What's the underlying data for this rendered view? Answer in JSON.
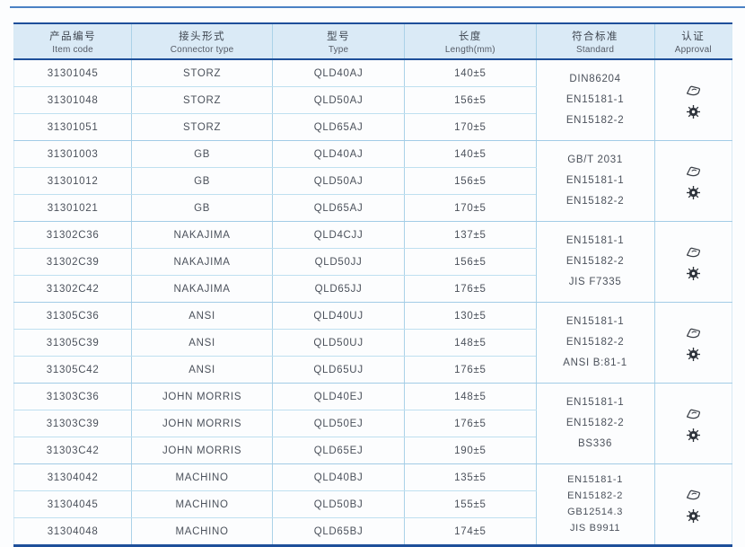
{
  "colors": {
    "accent_navy": "#1e4f9a",
    "header_bg": "#daeaf6",
    "grid_blue": "#abd2e8",
    "text": "#4b515b",
    "top_rule_blue": "#4a81c4"
  },
  "table": {
    "columns": [
      {
        "zh": "产品编号",
        "en": "Item code"
      },
      {
        "zh": "接头形式",
        "en": "Connector type"
      },
      {
        "zh": "型号",
        "en": "Type"
      },
      {
        "zh": "长度",
        "en": "Length(mm)"
      },
      {
        "zh": "符合标准",
        "en": "Standard"
      },
      {
        "zh": "认证",
        "en": "Approval"
      }
    ],
    "groups": [
      {
        "rows": [
          {
            "item_code": "31301045",
            "connector_type": "STORZ",
            "type": "QLD40AJ",
            "length": "140±5"
          },
          {
            "item_code": "31301048",
            "connector_type": "STORZ",
            "type": "QLD50AJ",
            "length": "156±5"
          },
          {
            "item_code": "31301051",
            "connector_type": "STORZ",
            "type": "QLD65AJ",
            "length": "170±5"
          }
        ],
        "standards": [
          "DIN86204",
          "EN15181-1",
          "EN15182-2"
        ],
        "approval_icons": [
          "certification-stamp-icon",
          "type-approval-wheel-icon"
        ]
      },
      {
        "rows": [
          {
            "item_code": "31301003",
            "connector_type": "GB",
            "type": "QLD40AJ",
            "length": "140±5"
          },
          {
            "item_code": "31301012",
            "connector_type": "GB",
            "type": "QLD50AJ",
            "length": "156±5"
          },
          {
            "item_code": "31301021",
            "connector_type": "GB",
            "type": "QLD65AJ",
            "length": "170±5"
          }
        ],
        "standards": [
          "GB/T 2031",
          "EN15181-1",
          "EN15182-2"
        ],
        "approval_icons": [
          "certification-stamp-icon",
          "type-approval-wheel-icon"
        ]
      },
      {
        "rows": [
          {
            "item_code": "31302C36",
            "connector_type": "NAKAJIMA",
            "type": "QLD4CJJ",
            "length": "137±5"
          },
          {
            "item_code": "31302C39",
            "connector_type": "NAKAJIMA",
            "type": "QLD50JJ",
            "length": "156±5"
          },
          {
            "item_code": "31302C42",
            "connector_type": "NAKAJIMA",
            "type": "QLD65JJ",
            "length": "176±5"
          }
        ],
        "standards": [
          "EN15181-1",
          "EN15182-2",
          "JIS F7335"
        ],
        "approval_icons": [
          "certification-stamp-icon",
          "type-approval-wheel-icon"
        ]
      },
      {
        "rows": [
          {
            "item_code": "31305C36",
            "connector_type": "ANSI",
            "type": "QLD40UJ",
            "length": "130±5"
          },
          {
            "item_code": "31305C39",
            "connector_type": "ANSI",
            "type": "QLD50UJ",
            "length": "148±5"
          },
          {
            "item_code": "31305C42",
            "connector_type": "ANSI",
            "type": "QLD65UJ",
            "length": "176±5"
          }
        ],
        "standards": [
          "EN15181-1",
          "EN15182-2",
          "ANSI B:81-1"
        ],
        "approval_icons": [
          "certification-stamp-icon",
          "type-approval-wheel-icon"
        ]
      },
      {
        "rows": [
          {
            "item_code": "31303C36",
            "connector_type": "JOHN MORRIS",
            "type": "QLD40EJ",
            "length": "148±5"
          },
          {
            "item_code": "31303C39",
            "connector_type": "JOHN MORRIS",
            "type": "QLD50EJ",
            "length": "176±5"
          },
          {
            "item_code": "31303C42",
            "connector_type": "JOHN MORRIS",
            "type": "QLD65EJ",
            "length": "190±5"
          }
        ],
        "standards": [
          "EN15181-1",
          "EN15182-2",
          "BS336"
        ],
        "approval_icons": [
          "certification-stamp-icon",
          "type-approval-wheel-icon"
        ]
      },
      {
        "rows": [
          {
            "item_code": "31304042",
            "connector_type": "MACHINO",
            "type": "QLD40BJ",
            "length": "135±5"
          },
          {
            "item_code": "31304045",
            "connector_type": "MACHINO",
            "type": "QLD50BJ",
            "length": "155±5"
          },
          {
            "item_code": "31304048",
            "connector_type": "MACHINO",
            "type": "QLD65BJ",
            "length": "174±5"
          }
        ],
        "standards": [
          "EN15181-1",
          "EN15182-2",
          "GB12514.3",
          "JIS B9911"
        ],
        "approval_icons": [
          "certification-stamp-icon",
          "type-approval-wheel-icon"
        ]
      }
    ]
  }
}
